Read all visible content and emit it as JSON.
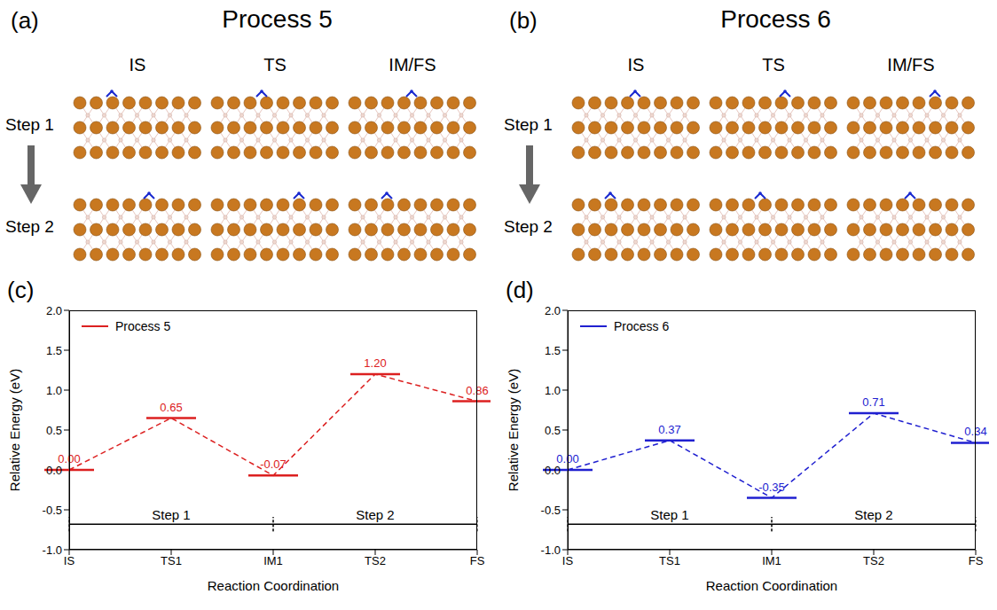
{
  "structures": [
    {
      "letter": "(a)",
      "title": "Process 5",
      "columns": [
        "IS",
        "TS",
        "IM/FS"
      ],
      "rows": [
        "Step 1",
        "Step 2"
      ]
    },
    {
      "letter": "(b)",
      "title": "Process 6",
      "columns": [
        "IS",
        "TS",
        "IM/FS"
      ],
      "rows": [
        "Step 1",
        "Step 2"
      ]
    }
  ],
  "chart_data": [
    {
      "letter": "(c)",
      "type": "line",
      "categories": [
        "IS",
        "TS1",
        "IM1",
        "TS2",
        "FS"
      ],
      "series": [
        {
          "name": "Process 5",
          "color": "#dc2020",
          "values": [
            0.0,
            0.65,
            -0.07,
            1.2,
            0.86
          ],
          "value_labels": [
            "0.00",
            "0.65",
            "-0.07",
            "1.20",
            "0.86"
          ],
          "line_style": "dashed",
          "marker": "level"
        }
      ],
      "xlabel": "Reaction Coordination",
      "ylabel": "Relative Energy (eV)",
      "ylim": [
        -1,
        2
      ],
      "yticks": [
        {
          "value": -1,
          "label": "-1.0"
        },
        -0.5,
        {
          "value": 0,
          "label": "0.0"
        },
        0.5,
        {
          "value": 1,
          "label": "1.0"
        },
        1.5,
        {
          "value": 2,
          "label": "2.0"
        }
      ],
      "legend": "upper left",
      "annotations": [
        {
          "text": "Step 1",
          "from": "IS",
          "to": "IM1",
          "y": -0.68
        },
        {
          "text": "Step 2",
          "from": "IM1",
          "to": "FS",
          "y": -0.68
        }
      ]
    },
    {
      "letter": "(d)",
      "type": "line",
      "categories": [
        "IS",
        "TS1",
        "IM1",
        "TS2",
        "FS"
      ],
      "series": [
        {
          "name": "Process 6",
          "color": "#2020d0",
          "values": [
            0.0,
            0.37,
            -0.35,
            0.71,
            0.34
          ],
          "value_labels": [
            "0.00",
            "0.37",
            "-0.35",
            "0.71",
            "0.34"
          ],
          "line_style": "dashed",
          "marker": "level"
        }
      ],
      "xlabel": "Reaction Coordination",
      "ylabel": "Relative Energy (eV)",
      "ylim": [
        -1,
        2
      ],
      "yticks": [
        {
          "value": -1,
          "label": "-1.0"
        },
        -0.5,
        {
          "value": 0,
          "label": "0.0"
        },
        0.5,
        {
          "value": 1,
          "label": "1.0"
        },
        1.5,
        {
          "value": 2,
          "label": "2.0"
        }
      ],
      "legend": "upper left",
      "annotations": [
        {
          "text": "Step 1",
          "from": "IS",
          "to": "IM1",
          "y": -0.68
        },
        {
          "text": "Step 2",
          "from": "IM1",
          "to": "FS",
          "y": -0.68
        }
      ]
    }
  ]
}
